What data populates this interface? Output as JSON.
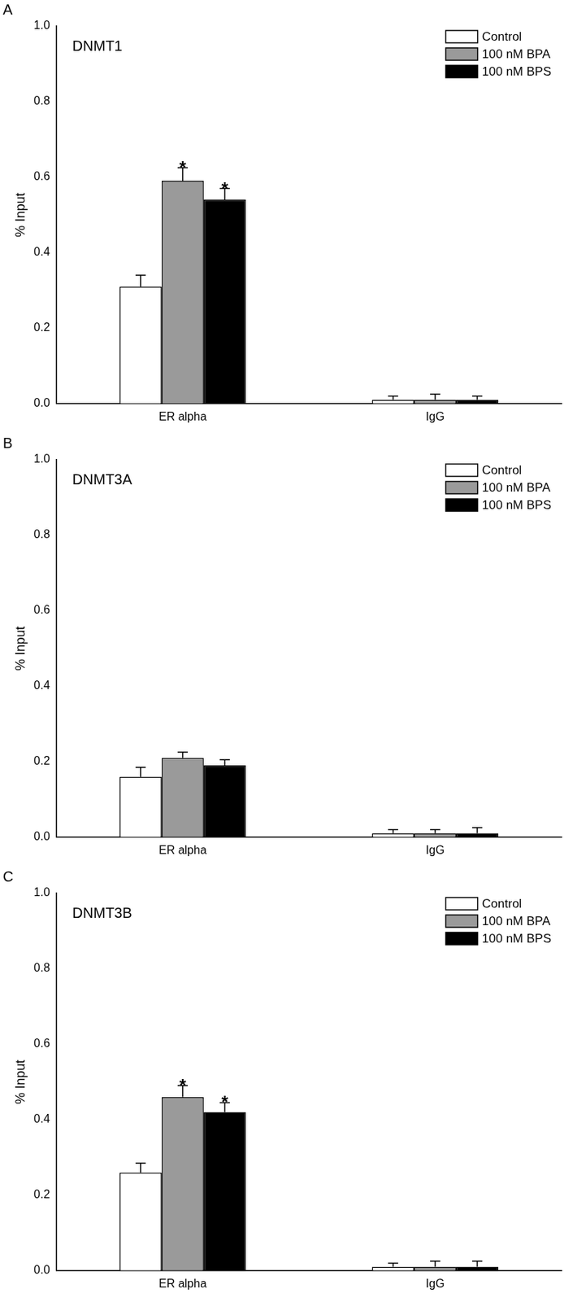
{
  "chart_data": [
    {
      "type": "bar",
      "panel": "A",
      "title": "DNMT1",
      "categories": [
        "ER alpha",
        "IgG"
      ],
      "y_label": "% Input",
      "ylim": [
        0,
        1
      ],
      "yticks": [
        {
          "value": 0,
          "label": "0.0"
        },
        {
          "value": 0.2,
          "label": "0.2"
        },
        {
          "value": 0.4,
          "label": "0.4"
        },
        {
          "value": 0.6,
          "label": "0.6"
        },
        {
          "value": 0.8,
          "label": "0.8"
        },
        {
          "value": 1,
          "label": "1.0"
        }
      ],
      "legend": "top-right",
      "grid": false,
      "series": [
        {
          "name": "Control",
          "color": "#ffffff",
          "values": [
            0.31,
            0.01
          ],
          "errors": [
            0.03,
            0.01
          ]
        },
        {
          "name": "100 nM BPA",
          "color": "#9a9a9a",
          "values": [
            0.59,
            0.01
          ],
          "errors": [
            0.035,
            0.015
          ]
        },
        {
          "name": "100 nM BPS",
          "color": "#000000",
          "values": [
            0.54,
            0.01
          ],
          "errors": [
            0.03,
            0.01
          ]
        }
      ],
      "annotations": [
        {
          "text": "*",
          "category": "ER alpha",
          "series": "100 nM BPA"
        },
        {
          "text": "*",
          "category": "ER alpha",
          "series": "100 nM BPS"
        }
      ]
    },
    {
      "type": "bar",
      "panel": "B",
      "title": "DNMT3A",
      "categories": [
        "ER alpha",
        "IgG"
      ],
      "y_label": "% Input",
      "ylim": [
        0,
        1
      ],
      "yticks": [
        {
          "value": 0,
          "label": "0.0"
        },
        {
          "value": 0.2,
          "label": "0.2"
        },
        {
          "value": 0.4,
          "label": "0.4"
        },
        {
          "value": 0.6,
          "label": "0.6"
        },
        {
          "value": 0.8,
          "label": "0.8"
        },
        {
          "value": 1,
          "label": "1.0"
        }
      ],
      "legend": "top-right",
      "grid": false,
      "series": [
        {
          "name": "Control",
          "color": "#ffffff",
          "values": [
            0.16,
            0.01
          ],
          "errors": [
            0.025,
            0.01
          ]
        },
        {
          "name": "100 nM BPA",
          "color": "#9a9a9a",
          "values": [
            0.21,
            0.01
          ],
          "errors": [
            0.015,
            0.01
          ]
        },
        {
          "name": "100 nM BPS",
          "color": "#000000",
          "values": [
            0.19,
            0.01
          ],
          "errors": [
            0.015,
            0.015
          ]
        }
      ],
      "annotations": []
    },
    {
      "type": "bar",
      "panel": "C",
      "title": "DNMT3B",
      "categories": [
        "ER alpha",
        "IgG"
      ],
      "y_label": "% Input",
      "ylim": [
        0,
        1
      ],
      "yticks": [
        {
          "value": 0,
          "label": "0.0"
        },
        {
          "value": 0.2,
          "label": "0.2"
        },
        {
          "value": 0.4,
          "label": "0.4"
        },
        {
          "value": 0.6,
          "label": "0.6"
        },
        {
          "value": 0.8,
          "label": "0.8"
        },
        {
          "value": 1,
          "label": "1.0"
        }
      ],
      "legend": "top-right",
      "grid": false,
      "series": [
        {
          "name": "Control",
          "color": "#ffffff",
          "values": [
            0.26,
            0.01
          ],
          "errors": [
            0.025,
            0.01
          ]
        },
        {
          "name": "100 nM BPA",
          "color": "#9a9a9a",
          "values": [
            0.46,
            0.01
          ],
          "errors": [
            0.03,
            0.015
          ]
        },
        {
          "name": "100 nM BPS",
          "color": "#000000",
          "values": [
            0.42,
            0.01
          ],
          "errors": [
            0.025,
            0.015
          ]
        }
      ],
      "annotations": [
        {
          "text": "*",
          "category": "ER alpha",
          "series": "100 nM BPA"
        },
        {
          "text": "*",
          "category": "ER alpha",
          "series": "100 nM BPS"
        }
      ]
    }
  ]
}
